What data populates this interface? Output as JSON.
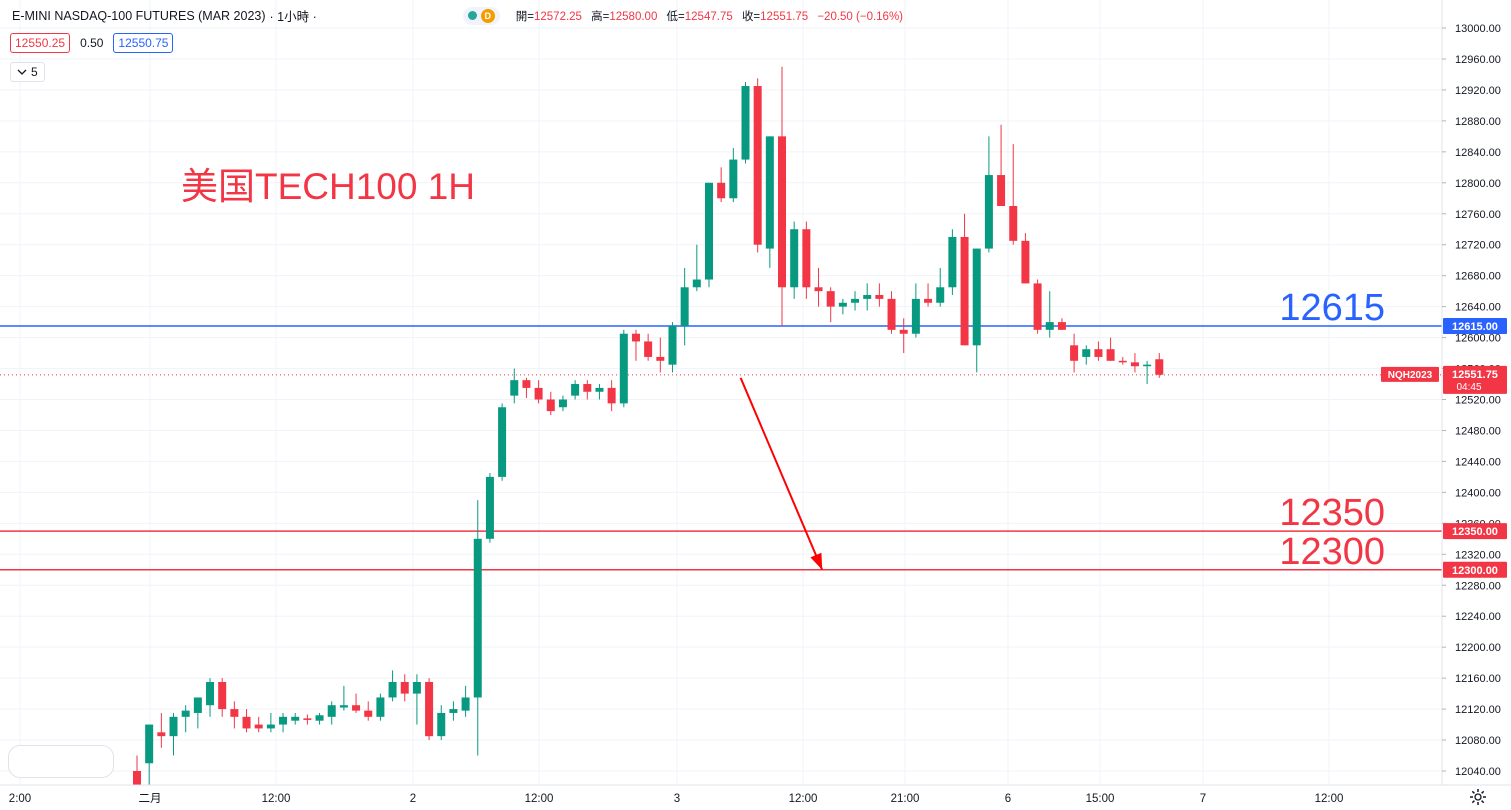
{
  "header": {
    "title": "E-MINI NASDAQ-100 FUTURES (MAR 2023)",
    "interval": "· 1小時 ·",
    "badge": "D",
    "ohlc": {
      "open_label": "開=",
      "open": "12572.25",
      "high_label": "高=",
      "high": "12580.00",
      "low_label": "低=",
      "low": "12547.75",
      "close_label": "收=",
      "close": "12551.75",
      "change": "−20.50 (−0.16%)"
    }
  },
  "trade": {
    "sell": "12550.25",
    "spread": "0.50",
    "buy": "12550.75"
  },
  "collapse_count": "5",
  "annotation": "美国TECH100 1H",
  "colors": {
    "up": "#089981",
    "down": "#f23645",
    "blue_line": "#2962ff",
    "red_line": "#f23645"
  },
  "chart_data": {
    "type": "candlestick",
    "symbol": "NQH2023",
    "last_price": "12551.75",
    "countdown": "04:45",
    "ylim": [
      12010,
      13010
    ],
    "y_ticks": [
      12040,
      12080,
      12120,
      12160,
      12200,
      12240,
      12280,
      12320,
      12360,
      12400,
      12440,
      12480,
      12520,
      12560,
      12600,
      12640,
      12680,
      12720,
      12760,
      12800,
      12840,
      12880,
      12920,
      12960,
      13000
    ],
    "x_tick_labels": [
      "2:00",
      "二月",
      "12:00",
      "2",
      "12:00",
      "3",
      "12:00",
      "21:00",
      "6",
      "15:00",
      "7",
      "12:00"
    ],
    "levels": [
      {
        "price": 12615,
        "label": "12615.00",
        "big_label": "12615",
        "color": "#2962ff"
      },
      {
        "price": 12350,
        "label": "12350.00",
        "big_label": "12350",
        "color": "#f23645"
      },
      {
        "price": 12300,
        "label": "12300.00",
        "big_label": "12300",
        "color": "#f23645"
      }
    ],
    "forecast_arrow": {
      "from": {
        "index": 49.6,
        "price": 12548
      },
      "to": {
        "index": 56.3,
        "price": 12300
      }
    },
    "candles": [
      {
        "o": 12040,
        "h": 12060,
        "l": 12020,
        "c": 12020
      },
      {
        "o": 12050,
        "h": 12100,
        "l": 12010,
        "c": 12100
      },
      {
        "o": 12090,
        "h": 12115,
        "l": 12070,
        "c": 12085
      },
      {
        "o": 12085,
        "h": 12115,
        "l": 12060,
        "c": 12110
      },
      {
        "o": 12110,
        "h": 12125,
        "l": 12090,
        "c": 12118
      },
      {
        "o": 12115,
        "h": 12135,
        "l": 12095,
        "c": 12135
      },
      {
        "o": 12125,
        "h": 12160,
        "l": 12110,
        "c": 12155
      },
      {
        "o": 12155,
        "h": 12160,
        "l": 12110,
        "c": 12120
      },
      {
        "o": 12120,
        "h": 12130,
        "l": 12095,
        "c": 12110
      },
      {
        "o": 12110,
        "h": 12120,
        "l": 12090,
        "c": 12095
      },
      {
        "o": 12100,
        "h": 12110,
        "l": 12090,
        "c": 12095
      },
      {
        "o": 12095,
        "h": 12115,
        "l": 12090,
        "c": 12100
      },
      {
        "o": 12100,
        "h": 12115,
        "l": 12090,
        "c": 12110
      },
      {
        "o": 12105,
        "h": 12115,
        "l": 12100,
        "c": 12110
      },
      {
        "o": 12108,
        "h": 12113,
        "l": 12100,
        "c": 12106
      },
      {
        "o": 12105,
        "h": 12115,
        "l": 12100,
        "c": 12112
      },
      {
        "o": 12110,
        "h": 12130,
        "l": 12100,
        "c": 12125
      },
      {
        "o": 12122,
        "h": 12150,
        "l": 12118,
        "c": 12125
      },
      {
        "o": 12125,
        "h": 12140,
        "l": 12115,
        "c": 12118
      },
      {
        "o": 12118,
        "h": 12130,
        "l": 12105,
        "c": 12110
      },
      {
        "o": 12110,
        "h": 12140,
        "l": 12105,
        "c": 12135
      },
      {
        "o": 12135,
        "h": 12170,
        "l": 12130,
        "c": 12155
      },
      {
        "o": 12155,
        "h": 12165,
        "l": 12130,
        "c": 12140
      },
      {
        "o": 12140,
        "h": 12165,
        "l": 12100,
        "c": 12155
      },
      {
        "o": 12155,
        "h": 12160,
        "l": 12080,
        "c": 12085
      },
      {
        "o": 12085,
        "h": 12125,
        "l": 12080,
        "c": 12115
      },
      {
        "o": 12115,
        "h": 12130,
        "l": 12105,
        "c": 12120
      },
      {
        "o": 12118,
        "h": 12150,
        "l": 12110,
        "c": 12135
      },
      {
        "o": 12135,
        "h": 12390,
        "l": 12060,
        "c": 12340
      },
      {
        "o": 12340,
        "h": 12425,
        "l": 12335,
        "c": 12420
      },
      {
        "o": 12420,
        "h": 12515,
        "l": 12415,
        "c": 12510
      },
      {
        "o": 12525,
        "h": 12560,
        "l": 12515,
        "c": 12545
      },
      {
        "o": 12545,
        "h": 12548,
        "l": 12522,
        "c": 12535
      },
      {
        "o": 12535,
        "h": 12545,
        "l": 12515,
        "c": 12520
      },
      {
        "o": 12520,
        "h": 12530,
        "l": 12500,
        "c": 12505
      },
      {
        "o": 12510,
        "h": 12525,
        "l": 12505,
        "c": 12520
      },
      {
        "o": 12525,
        "h": 12545,
        "l": 12520,
        "c": 12540
      },
      {
        "o": 12540,
        "h": 12545,
        "l": 12520,
        "c": 12530
      },
      {
        "o": 12530,
        "h": 12540,
        "l": 12520,
        "c": 12535
      },
      {
        "o": 12535,
        "h": 12545,
        "l": 12505,
        "c": 12515
      },
      {
        "o": 12515,
        "h": 12610,
        "l": 12510,
        "c": 12605
      },
      {
        "o": 12605,
        "h": 12610,
        "l": 12570,
        "c": 12595
      },
      {
        "o": 12595,
        "h": 12605,
        "l": 12570,
        "c": 12575
      },
      {
        "o": 12575,
        "h": 12600,
        "l": 12555,
        "c": 12570
      },
      {
        "o": 12565,
        "h": 12620,
        "l": 12555,
        "c": 12615
      },
      {
        "o": 12615,
        "h": 12690,
        "l": 12590,
        "c": 12665
      },
      {
        "o": 12665,
        "h": 12720,
        "l": 12660,
        "c": 12675
      },
      {
        "o": 12675,
        "h": 12800,
        "l": 12665,
        "c": 12800
      },
      {
        "o": 12800,
        "h": 12820,
        "l": 12775,
        "c": 12780
      },
      {
        "o": 12780,
        "h": 12845,
        "l": 12775,
        "c": 12830
      },
      {
        "o": 12830,
        "h": 12930,
        "l": 12825,
        "c": 12925
      },
      {
        "o": 12925,
        "h": 12935,
        "l": 12710,
        "c": 12720
      },
      {
        "o": 12715,
        "h": 12860,
        "l": 12690,
        "c": 12860
      },
      {
        "o": 12860,
        "h": 12950,
        "l": 12615,
        "c": 12665
      },
      {
        "o": 12665,
        "h": 12750,
        "l": 12650,
        "c": 12740
      },
      {
        "o": 12740,
        "h": 12750,
        "l": 12650,
        "c": 12665
      },
      {
        "o": 12665,
        "h": 12690,
        "l": 12640,
        "c": 12660
      },
      {
        "o": 12660,
        "h": 12665,
        "l": 12620,
        "c": 12640
      },
      {
        "o": 12640,
        "h": 12650,
        "l": 12630,
        "c": 12645
      },
      {
        "o": 12645,
        "h": 12660,
        "l": 12635,
        "c": 12650
      },
      {
        "o": 12650,
        "h": 12670,
        "l": 12635,
        "c": 12655
      },
      {
        "o": 12655,
        "h": 12670,
        "l": 12640,
        "c": 12650
      },
      {
        "o": 12650,
        "h": 12660,
        "l": 12605,
        "c": 12610
      },
      {
        "o": 12610,
        "h": 12625,
        "l": 12580,
        "c": 12605
      },
      {
        "o": 12605,
        "h": 12670,
        "l": 12600,
        "c": 12650
      },
      {
        "o": 12650,
        "h": 12670,
        "l": 12640,
        "c": 12645
      },
      {
        "o": 12645,
        "h": 12690,
        "l": 12640,
        "c": 12665
      },
      {
        "o": 12665,
        "h": 12740,
        "l": 12655,
        "c": 12730
      },
      {
        "o": 12730,
        "h": 12760,
        "l": 12590,
        "c": 12590
      },
      {
        "o": 12590,
        "h": 12715,
        "l": 12555,
        "c": 12715
      },
      {
        "o": 12715,
        "h": 12860,
        "l": 12710,
        "c": 12810
      },
      {
        "o": 12810,
        "h": 12875,
        "l": 12770,
        "c": 12770
      },
      {
        "o": 12770,
        "h": 12850,
        "l": 12720,
        "c": 12725
      },
      {
        "o": 12725,
        "h": 12735,
        "l": 12670,
        "c": 12670
      },
      {
        "o": 12670,
        "h": 12675,
        "l": 12605,
        "c": 12610
      },
      {
        "o": 12610,
        "h": 12660,
        "l": 12600,
        "c": 12620
      },
      {
        "o": 12620,
        "h": 12625,
        "l": 12610,
        "c": 12610
      },
      {
        "o": 12590,
        "h": 12605,
        "l": 12555,
        "c": 12570
      },
      {
        "o": 12575,
        "h": 12590,
        "l": 12565,
        "c": 12585
      },
      {
        "o": 12585,
        "h": 12595,
        "l": 12570,
        "c": 12575
      },
      {
        "o": 12585,
        "h": 12600,
        "l": 12570,
        "c": 12570
      },
      {
        "o": 12570,
        "h": 12575,
        "l": 12565,
        "c": 12568
      },
      {
        "o": 12568,
        "h": 12580,
        "l": 12555,
        "c": 12563
      },
      {
        "o": 12563,
        "h": 12570,
        "l": 12540,
        "c": 12565
      },
      {
        "o": 12572,
        "h": 12580,
        "l": 12548,
        "c": 12552
      }
    ]
  }
}
